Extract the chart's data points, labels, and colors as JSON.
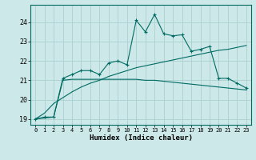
{
  "xlabel": "Humidex (Indice chaleur)",
  "x": [
    0,
    1,
    2,
    3,
    4,
    5,
    6,
    7,
    8,
    9,
    10,
    11,
    12,
    13,
    14,
    15,
    16,
    17,
    18,
    19,
    20,
    21,
    22,
    23
  ],
  "line1": [
    19.0,
    19.1,
    19.1,
    21.1,
    21.3,
    21.5,
    21.5,
    21.3,
    21.9,
    22.0,
    21.8,
    24.1,
    23.5,
    24.4,
    23.4,
    23.3,
    23.35,
    22.5,
    22.6,
    22.75,
    21.1,
    21.1,
    20.85,
    20.6
  ],
  "line2": [
    19.0,
    19.05,
    19.1,
    21.0,
    21.05,
    21.05,
    21.05,
    21.05,
    21.05,
    21.05,
    21.05,
    21.05,
    21.0,
    21.0,
    20.95,
    20.9,
    20.85,
    20.8,
    20.75,
    20.7,
    20.65,
    20.6,
    20.55,
    20.5
  ],
  "line3": [
    19.0,
    19.3,
    19.8,
    20.1,
    20.4,
    20.65,
    20.85,
    21.0,
    21.2,
    21.35,
    21.5,
    21.65,
    21.75,
    21.85,
    21.95,
    22.05,
    22.15,
    22.25,
    22.35,
    22.45,
    22.55,
    22.6,
    22.7,
    22.8
  ],
  "line_color": "#006b63",
  "bg_color": "#cce8e8",
  "grid_color": "#aad0d0",
  "ylim": [
    18.7,
    24.9
  ],
  "yticks": [
    19,
    20,
    21,
    22,
    23,
    24
  ],
  "xlim": [
    -0.5,
    23.5
  ]
}
